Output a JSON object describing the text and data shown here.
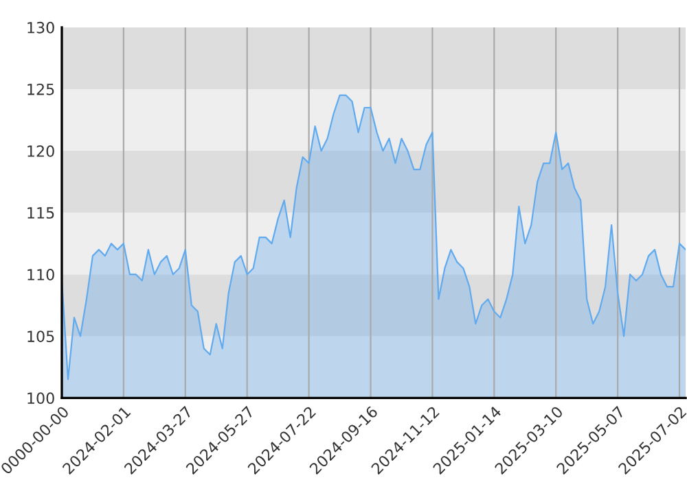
{
  "chart_data": {
    "type": "area",
    "categories": [
      "0000-00-00",
      null,
      null,
      null,
      null,
      null,
      null,
      null,
      null,
      null,
      "2024-02-01",
      null,
      null,
      null,
      null,
      null,
      null,
      null,
      null,
      null,
      "2024-03-27",
      null,
      null,
      null,
      null,
      null,
      null,
      null,
      null,
      null,
      "2024-05-27",
      null,
      null,
      null,
      null,
      null,
      null,
      null,
      null,
      null,
      "2024-07-22",
      null,
      null,
      null,
      null,
      null,
      null,
      null,
      null,
      null,
      "2024-09-16",
      null,
      null,
      null,
      null,
      null,
      null,
      null,
      null,
      null,
      "2024-11-12",
      null,
      null,
      null,
      null,
      null,
      null,
      null,
      null,
      null,
      "2025-01-14",
      null,
      null,
      null,
      null,
      null,
      null,
      null,
      null,
      null,
      "2025-03-10",
      null,
      null,
      null,
      null,
      null,
      null,
      null,
      null,
      null,
      "2025-05-07",
      null,
      null,
      null,
      null,
      null,
      null,
      null,
      null,
      null,
      "2025-07-02",
      null
    ],
    "series": [
      {
        "color": "#62aaee",
        "values": [
          109.5,
          101.5,
          106.5,
          105,
          108,
          111.5,
          112,
          111.5,
          112.5,
          112,
          112.5,
          110,
          110,
          109.5,
          112,
          110,
          111,
          111.5,
          110,
          110.5,
          112,
          107.5,
          107,
          104,
          103.5,
          106,
          104,
          108.5,
          111,
          111.5,
          110,
          110.5,
          113,
          113,
          112.5,
          114.5,
          116,
          113,
          117,
          119.5,
          119,
          122,
          120,
          121,
          123,
          124.5,
          124.5,
          124,
          121.5,
          123.5,
          123.5,
          121.5,
          120,
          121,
          119,
          121,
          120,
          118.5,
          118.5,
          120.5,
          121.5,
          108,
          110.5,
          112,
          111,
          110.5,
          109,
          106,
          107.5,
          108,
          107,
          106.5,
          108,
          110,
          115.5,
          112.5,
          114,
          117.5,
          119,
          119,
          121.5,
          118.5,
          119,
          117,
          116,
          108,
          106,
          107,
          109,
          114,
          108.5,
          105,
          110,
          109.5,
          110,
          111.5,
          112,
          110,
          109,
          109,
          112.5,
          112
        ]
      }
    ],
    "ylim": [
      100,
      130
    ],
    "yticks": [
      100,
      105,
      110,
      115,
      120,
      125,
      130
    ],
    "grid": "x",
    "bands": [
      {
        "axis": "y",
        "from": 100,
        "to": 105,
        "color": "#eeeeee"
      },
      {
        "axis": "y",
        "from": 105,
        "to": 110,
        "color": "#dddddd"
      },
      {
        "axis": "y",
        "from": 110,
        "to": 115,
        "color": "#eeeeee"
      },
      {
        "axis": "y",
        "from": 115,
        "to": 120,
        "color": "#dddddd"
      },
      {
        "axis": "y",
        "from": 120,
        "to": 125,
        "color": "#eeeeee"
      },
      {
        "axis": "y",
        "from": 125,
        "to": 130,
        "color": "#dddddd"
      }
    ]
  }
}
